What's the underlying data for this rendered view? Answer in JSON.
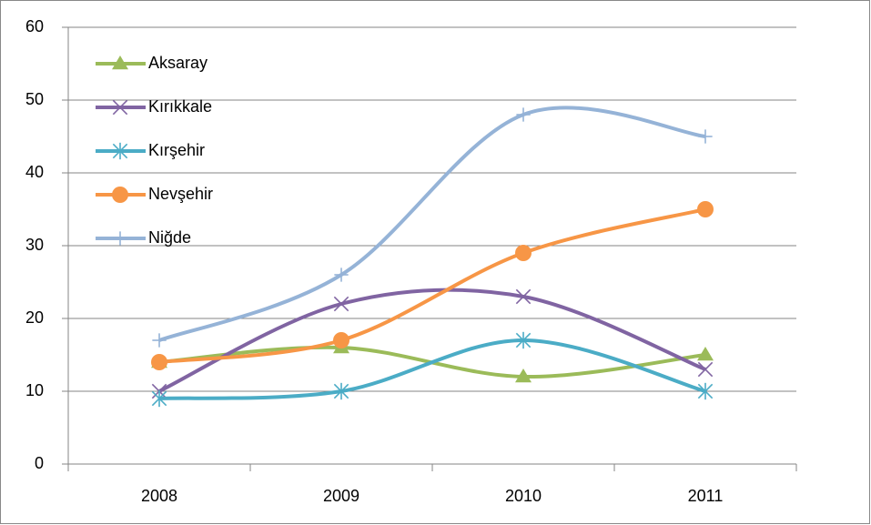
{
  "chart_data": {
    "type": "line",
    "smooth": true,
    "legend": "top-left",
    "grid": true,
    "categories": [
      "2008",
      "2009",
      "2010",
      "2011"
    ],
    "ylim": [
      0,
      60
    ],
    "yticks": [
      0,
      10,
      20,
      30,
      40,
      50,
      60
    ],
    "series": [
      {
        "name": "Aksaray",
        "color": "#9bbb59",
        "marker": "triangle",
        "values": [
          14,
          16,
          12,
          15
        ]
      },
      {
        "name": "Kırıkkale",
        "color": "#8064a2",
        "marker": "x",
        "values": [
          10,
          22,
          23,
          13
        ]
      },
      {
        "name": "Kırşehir",
        "color": "#4bacc6",
        "marker": "star",
        "values": [
          9,
          10,
          17,
          10
        ]
      },
      {
        "name": "Nevşehir",
        "color": "#f79646",
        "marker": "circle",
        "values": [
          14,
          17,
          29,
          35
        ]
      },
      {
        "name": "Niğde",
        "color": "#95b3d7",
        "marker": "plus",
        "values": [
          17,
          26,
          48,
          45
        ]
      }
    ]
  }
}
